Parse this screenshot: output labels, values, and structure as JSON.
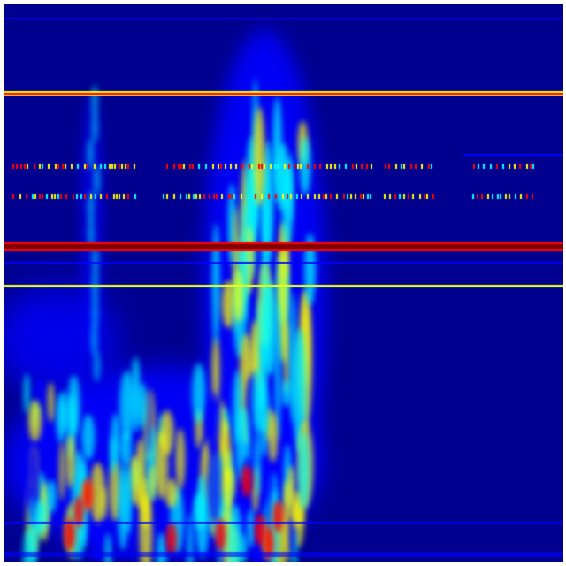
{
  "image": {
    "kind": "spectrogram-heatmap",
    "colormap": "jet",
    "colors": {
      "background": "#00008f",
      "low": "#0000ff",
      "mid_low": "#00ffff",
      "mid_high": "#ffff00",
      "high": "#ff0000",
      "peak": "#800000"
    }
  }
}
